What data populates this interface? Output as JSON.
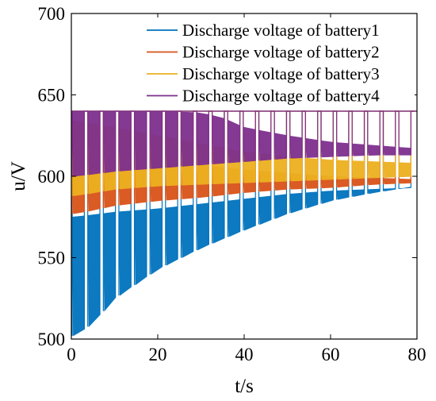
{
  "chart_data": {
    "type": "line",
    "title": "",
    "xlabel": "t/s",
    "ylabel": "u/V",
    "xlim": [
      0,
      80
    ],
    "ylim": [
      500,
      700
    ],
    "x_ticks": [
      0,
      20,
      40,
      60,
      80
    ],
    "y_ticks": [
      500,
      550,
      600,
      650,
      700
    ],
    "x_tick_labels": [
      "0",
      "20",
      "40",
      "60",
      "80"
    ],
    "y_tick_labels": [
      "500",
      "550",
      "600",
      "650",
      "700"
    ],
    "grid": false,
    "legend_position": "top-right",
    "pulse_period_s": 3.6,
    "pulse_count": 22,
    "series": [
      {
        "name": "Discharge voltage of battery1",
        "color": "#0072BD",
        "rest_level": 640,
        "band_bottom": [
          [
            1,
            502
          ],
          [
            5,
            510
          ],
          [
            10,
            525
          ],
          [
            20,
            543
          ],
          [
            30,
            556
          ],
          [
            40,
            567
          ],
          [
            50,
            577
          ],
          [
            60,
            585
          ],
          [
            70,
            590
          ],
          [
            80,
            594
          ]
        ],
        "band_top": [
          [
            1,
            575
          ],
          [
            10,
            578
          ],
          [
            20,
            580
          ],
          [
            30,
            583
          ],
          [
            40,
            586
          ],
          [
            50,
            589
          ],
          [
            60,
            591
          ],
          [
            70,
            592
          ],
          [
            80,
            593
          ]
        ]
      },
      {
        "name": "Discharge voltage of battery2",
        "color": "#D95319",
        "rest_level": 640,
        "band_bottom": [
          [
            1,
            577
          ],
          [
            10,
            582
          ],
          [
            20,
            585
          ],
          [
            30,
            587
          ],
          [
            40,
            590
          ],
          [
            50,
            592
          ],
          [
            60,
            593
          ],
          [
            70,
            595
          ],
          [
            80,
            596
          ]
        ],
        "band_top": [
          [
            1,
            613
          ],
          [
            10,
            612
          ],
          [
            20,
            610
          ],
          [
            30,
            607
          ],
          [
            40,
            604
          ],
          [
            50,
            602
          ],
          [
            60,
            600
          ],
          [
            70,
            599
          ],
          [
            80,
            598
          ]
        ]
      },
      {
        "name": "Discharge voltage of battery3",
        "color": "#EDB120",
        "rest_level": 640,
        "band_bottom": [
          [
            1,
            588
          ],
          [
            10,
            592
          ],
          [
            20,
            594
          ],
          [
            30,
            595
          ],
          [
            40,
            596
          ],
          [
            50,
            597
          ],
          [
            60,
            598
          ],
          [
            70,
            599
          ],
          [
            80,
            600
          ]
        ],
        "band_top": [
          [
            1,
            634
          ],
          [
            10,
            630
          ],
          [
            20,
            625
          ],
          [
            30,
            620
          ],
          [
            40,
            615
          ],
          [
            50,
            612
          ],
          [
            60,
            610
          ],
          [
            70,
            609
          ],
          [
            80,
            608
          ]
        ]
      },
      {
        "name": "Discharge voltage of battery4",
        "color": "#7E2F8E",
        "rest_level": 640,
        "band_bottom": [
          [
            1,
            600
          ],
          [
            10,
            603
          ],
          [
            20,
            605
          ],
          [
            30,
            607
          ],
          [
            40,
            609
          ],
          [
            50,
            611
          ],
          [
            60,
            612
          ],
          [
            70,
            613
          ],
          [
            80,
            613
          ]
        ],
        "band_top": [
          [
            1,
            640
          ],
          [
            20,
            640
          ],
          [
            30,
            639
          ],
          [
            35,
            636
          ],
          [
            40,
            630
          ],
          [
            50,
            625
          ],
          [
            60,
            621
          ],
          [
            70,
            619
          ],
          [
            80,
            617
          ]
        ]
      }
    ]
  }
}
